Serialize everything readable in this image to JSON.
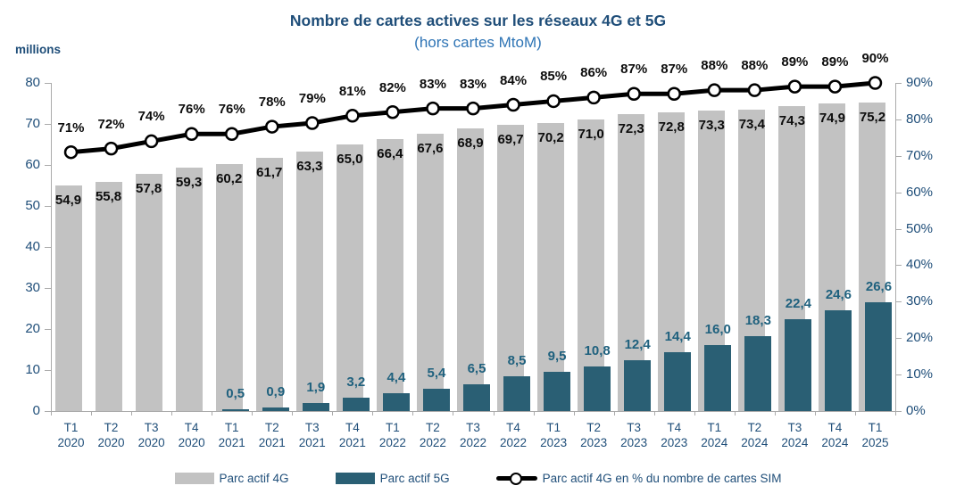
{
  "header": {
    "title": "Nombre de cartes actives sur les réseaux 4G et 5G",
    "subtitle": "(hors cartes MtoM)"
  },
  "colors": {
    "title_text": "#1F4E79",
    "subtitle_text": "#2E74B5",
    "axis_text": "#1F4E79",
    "bar_4g": "#C2C2C2",
    "bar_5g": "#2A5F74",
    "label_4g_text": "#0d0d0d",
    "label_5g_text": "#1F617E",
    "line": "#000000",
    "marker_fill": "#FFFFFF"
  },
  "chart_data": {
    "type": "combo",
    "grid": false,
    "legend_position": "bottom",
    "categories": [
      "T1 2020",
      "T2 2020",
      "T3 2020",
      "T4 2020",
      "T1 2021",
      "T2 2021",
      "T3 2021",
      "T4 2021",
      "T1 2022",
      "T2 2022",
      "T3 2022",
      "T4 2022",
      "T1 2023",
      "T2 2023",
      "T3 2023",
      "T4 2023",
      "T1 2024",
      "T2 2024",
      "T3 2024",
      "T4 2024",
      "T1 2025"
    ],
    "left_axis": {
      "label": "millions",
      "min": 0,
      "max": 80,
      "ticks": [
        0,
        10,
        20,
        30,
        40,
        50,
        60,
        70,
        80
      ]
    },
    "right_axis": {
      "min": 0,
      "max": 90,
      "ticks": [
        "0%",
        "10%",
        "20%",
        "30%",
        "40%",
        "50%",
        "60%",
        "70%",
        "80%",
        "90%"
      ]
    },
    "series": [
      {
        "name": "Parc actif 4G",
        "type": "bar",
        "axis": "left",
        "color": "#C2C2C2",
        "values": [
          54.9,
          55.8,
          57.8,
          59.3,
          60.2,
          61.7,
          63.3,
          65.0,
          66.4,
          67.6,
          68.9,
          69.7,
          70.2,
          71.0,
          72.3,
          72.8,
          73.3,
          73.4,
          74.3,
          74.9,
          75.2
        ],
        "labels": [
          "54,9",
          "55,8",
          "57,8",
          "59,3",
          "60,2",
          "61,7",
          "63,3",
          "65,0",
          "66,4",
          "67,6",
          "68,9",
          "69,7",
          "70,2",
          "71,0",
          "72,3",
          "72,8",
          "73,3",
          "73,4",
          "74,3",
          "74,9",
          "75,2"
        ]
      },
      {
        "name": "Parc actif 5G",
        "type": "bar",
        "axis": "left",
        "color": "#2A5F74",
        "values": [
          null,
          null,
          null,
          null,
          0.5,
          0.9,
          1.9,
          3.2,
          4.4,
          5.4,
          6.5,
          8.5,
          9.5,
          10.8,
          12.4,
          14.4,
          16.0,
          18.3,
          22.4,
          24.6,
          26.6
        ],
        "labels": [
          "",
          "",
          "",
          "",
          "0,5",
          "0,9",
          "1,9",
          "3,2",
          "4,4",
          "5,4",
          "6,5",
          "8,5",
          "9,5",
          "10,8",
          "12,4",
          "14,4",
          "16,0",
          "18,3",
          "22,4",
          "24,6",
          "26,6"
        ]
      },
      {
        "name": "Parc actif 4G en % du nombre de cartes SIM",
        "type": "line",
        "axis": "right",
        "color": "#000000",
        "marker": "white-circle",
        "values": [
          71,
          72,
          74,
          76,
          76,
          78,
          79,
          81,
          82,
          83,
          83,
          84,
          85,
          86,
          87,
          87,
          88,
          88,
          89,
          89,
          90
        ],
        "labels": [
          "71%",
          "72%",
          "74%",
          "76%",
          "76%",
          "78%",
          "79%",
          "81%",
          "82%",
          "83%",
          "83%",
          "84%",
          "85%",
          "86%",
          "87%",
          "87%",
          "88%",
          "88%",
          "89%",
          "89%",
          "90%"
        ]
      }
    ]
  }
}
